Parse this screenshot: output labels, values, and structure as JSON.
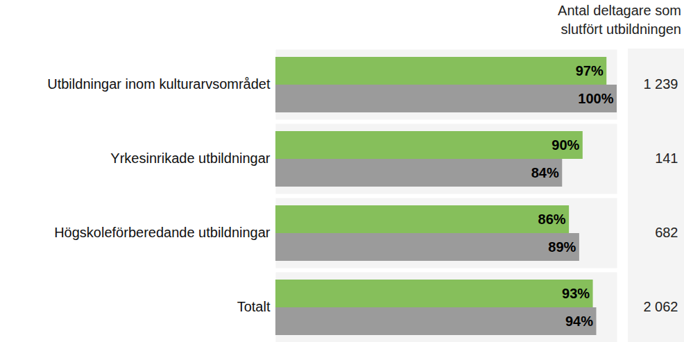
{
  "chart_data": {
    "type": "bar",
    "orientation": "horizontal",
    "categories": [
      "Utbildningar inom kulturarvsområdet",
      "Yrkesinrikade utbildningar",
      "Högskoleförberedande utbildningar",
      "Totalt"
    ],
    "series": [
      {
        "color": "#86bf5b",
        "values": [
          97,
          90,
          86,
          93
        ],
        "value_labels": [
          "97%",
          "90%",
          "86%",
          "93%"
        ]
      },
      {
        "color": "#9b9b9b",
        "values": [
          100,
          84,
          89,
          94
        ],
        "value_labels": [
          "100%",
          "84%",
          "89%",
          "94%"
        ]
      }
    ],
    "xlim": [
      0,
      100
    ],
    "data_labels": true,
    "tick_labels": false,
    "participants": {
      "title": "Antal deltagare som\nslutfört utbildningen",
      "values": [
        1239,
        141,
        682,
        2062
      ],
      "value_labels": [
        "1 239",
        "141",
        "682",
        "2 062"
      ]
    }
  }
}
